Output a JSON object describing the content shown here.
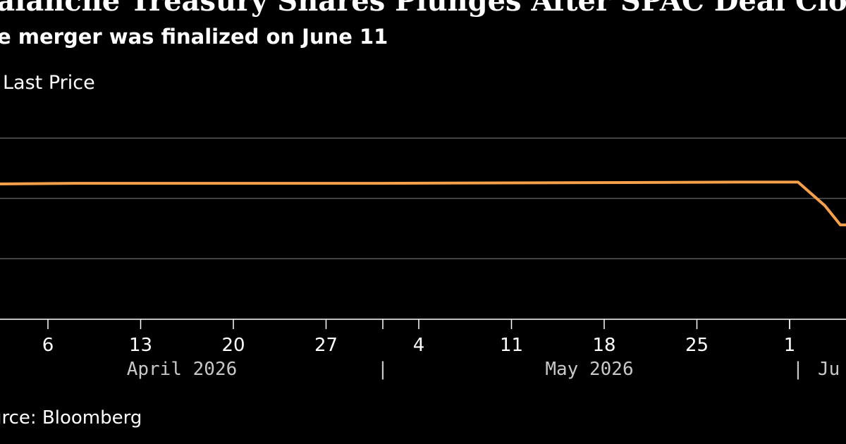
{
  "header": {
    "title": "valanche Treasury Shares Plunges After SPAC Deal Clos",
    "subtitle": "e merger was finalized on June 11"
  },
  "legend": {
    "label": "Last Price"
  },
  "source": {
    "text": "urce: Bloomberg"
  },
  "chart_data": {
    "type": "line",
    "colors": {
      "line": "#f5a04a",
      "grid": "#5a5a5a",
      "axis": "#ffffff",
      "background": "#000000"
    },
    "grid": true,
    "x_ticks": [
      {
        "date": "2026-04-06",
        "label": "6"
      },
      {
        "date": "2026-04-13",
        "label": "13"
      },
      {
        "date": "2026-04-20",
        "label": "20"
      },
      {
        "date": "2026-04-27",
        "label": "27"
      },
      {
        "date": "2026-05-04",
        "label": "4"
      },
      {
        "date": "2026-05-11",
        "label": "11"
      },
      {
        "date": "2026-05-18",
        "label": "18"
      },
      {
        "date": "2026-05-25",
        "label": "25"
      },
      {
        "date": "2026-06-01",
        "label": "1"
      }
    ],
    "month_boundaries": [
      "2026-05-01",
      "2026-06-01"
    ],
    "month_labels": [
      {
        "date": "2026-04-16",
        "label": "April 2026"
      },
      {
        "date": "2026-05-17",
        "label": "May 2026"
      },
      {
        "date": "2026-06-04",
        "label": "Ju"
      }
    ],
    "series": [
      {
        "points": [
          {
            "date": "2026-04-01",
            "value": 0.62
          },
          {
            "date": "2026-04-08",
            "value": 0.625
          },
          {
            "date": "2026-04-20",
            "value": 0.625
          },
          {
            "date": "2026-05-01",
            "value": 0.625
          },
          {
            "date": "2026-05-15",
            "value": 0.63
          },
          {
            "date": "2026-05-28",
            "value": 0.635
          },
          {
            "date": "2026-06-01",
            "value": 0.635
          },
          {
            "date": "2026-06-03",
            "value": 0.44
          },
          {
            "date": "2026-06-04",
            "value": 0.28
          },
          {
            "date": "2026-06-05",
            "value": 0.28
          }
        ]
      }
    ],
    "ylim": [
      -0.5,
      1.5
    ],
    "gridlines": [
      0,
      0.5,
      1
    ]
  }
}
